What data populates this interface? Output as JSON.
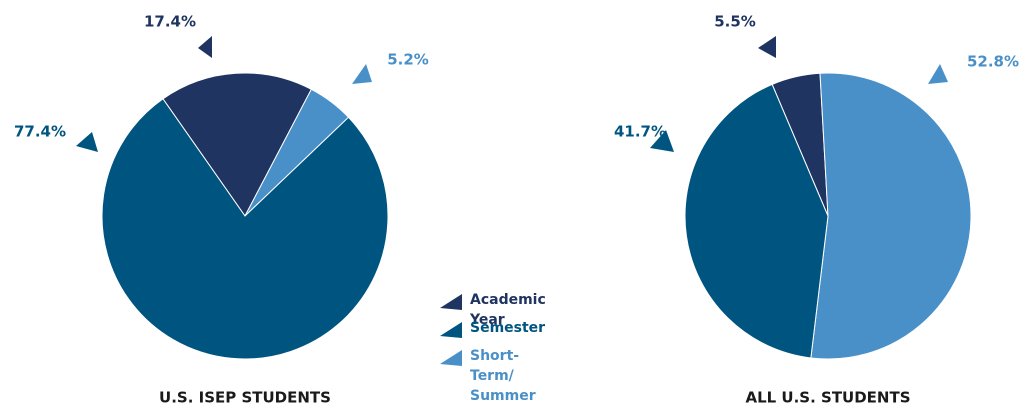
{
  "chart_data": [
    {
      "type": "pie",
      "title": "U.S. ISEP STUDENTS",
      "categories": [
        "Academic Year",
        "Semester",
        "Short-Term/ Summer"
      ],
      "values": [
        17.4,
        77.4,
        5.2
      ],
      "value_labels": [
        "17.4%",
        "77.4%",
        "5.2%"
      ],
      "colors": [
        "#1f3461",
        "#005580",
        "#4a90c8"
      ]
    },
    {
      "type": "pie",
      "title": "ALL U.S. STUDENTS",
      "categories": [
        "Academic Year",
        "Semester",
        "Short-Term/ Summer"
      ],
      "values": [
        5.5,
        41.7,
        52.8
      ],
      "value_labels": [
        "5.5%",
        "41.7%",
        "52.8%"
      ],
      "colors": [
        "#1f3461",
        "#005580",
        "#4a90c8"
      ]
    }
  ]
}
